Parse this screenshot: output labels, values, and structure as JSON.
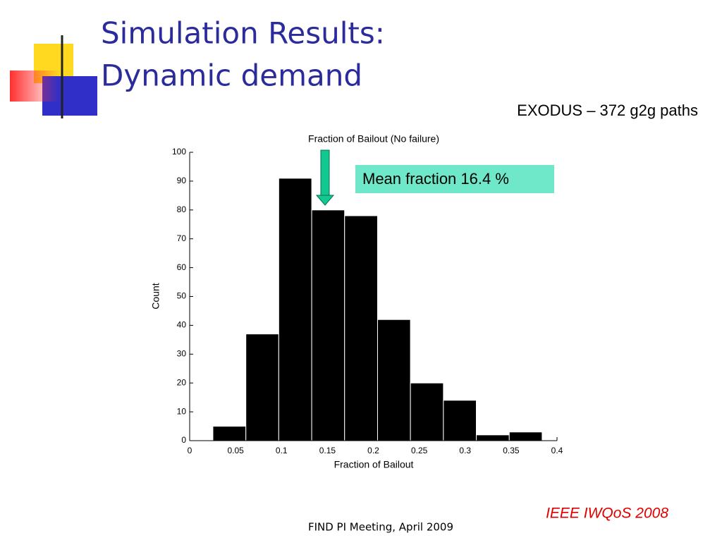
{
  "slide": {
    "title": [
      "Simulation Results:",
      "Dynamic demand"
    ],
    "subtitle": "EXODUS – 372 g2g paths",
    "source": "IEEE IWQoS 2008",
    "footer": "FIND PI Meeting, April 2009"
  },
  "chart_data": {
    "type": "histogram",
    "title": "Fraction of Bailout (No failure)",
    "x_label": "Fraction of Bailout",
    "y_label": "Count",
    "bins": [
      0.0253,
      0.0612,
      0.097,
      0.1329,
      0.1687,
      0.2046,
      0.2404,
      0.2763,
      0.3121,
      0.348,
      0.3838
    ],
    "values": [
      5,
      37,
      91,
      80,
      78,
      42,
      20,
      14,
      2,
      3
    ],
    "color": "#000000",
    "xlim": [
      0,
      0.4
    ],
    "xticks": [
      0,
      0.05,
      0.1,
      0.15,
      0.2,
      0.25,
      0.3,
      0.35,
      0.4
    ],
    "ylim": [
      0,
      100
    ],
    "yticks": [
      0,
      10,
      20,
      30,
      40,
      50,
      60,
      70,
      80,
      90,
      100
    ],
    "annotation": "Mean fraction 16.4 %"
  }
}
